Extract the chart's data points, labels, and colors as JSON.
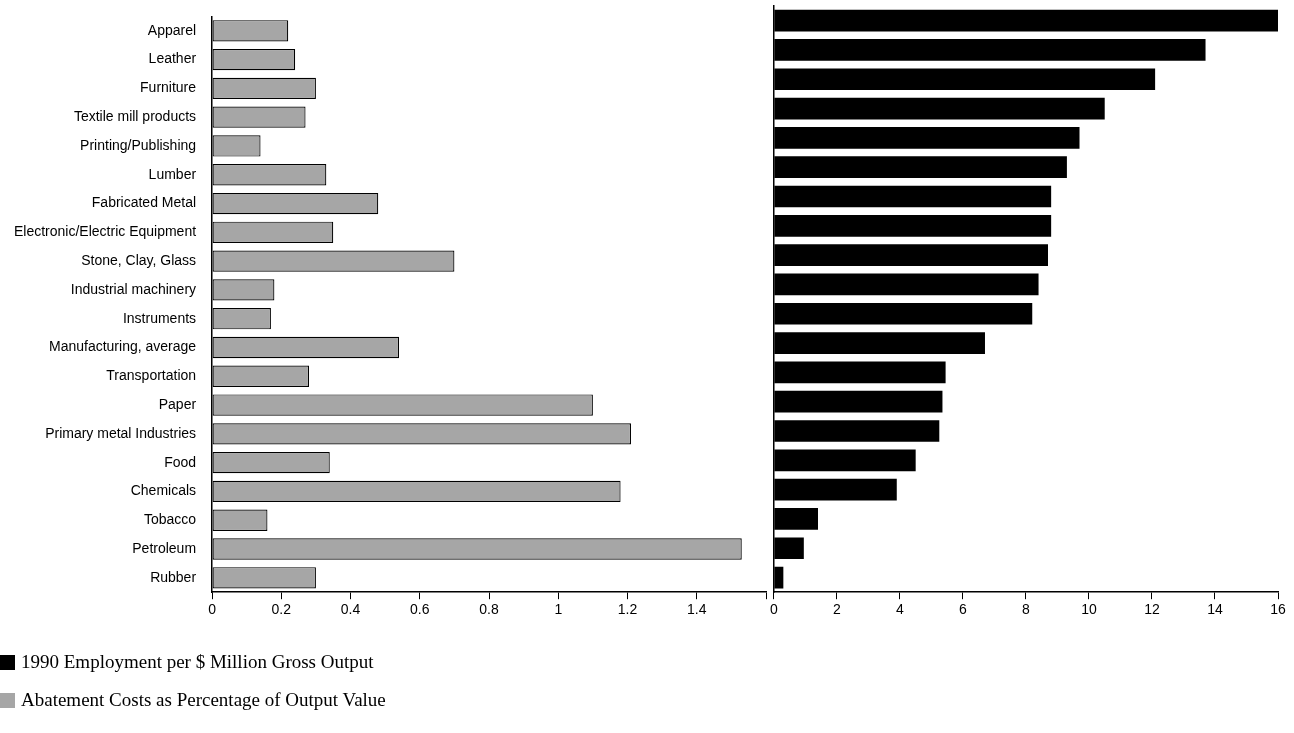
{
  "chart_data": [
    {
      "type": "bar",
      "orientation": "horizontal",
      "categories": [
        "Apparel",
        "Leather",
        "Furniture",
        "Textile mill products",
        "Printing/Publishing",
        "Lumber",
        "Fabricated Metal",
        "Electronic/Electric Equipment",
        "Stone, Clay, Glass",
        "Industrial machinery",
        "Instruments",
        "Manufacturing, average",
        "Transportation",
        "Paper",
        "Primary metal Industries",
        "Food",
        "Chemicals",
        "Tobacco",
        "Petroleum",
        "Rubber"
      ],
      "series": [
        {
          "name": "Abatement Costs as Percentage of Output Value",
          "color": "#a6a6a6",
          "values": [
            0.22,
            0.24,
            0.3,
            0.27,
            0.14,
            0.33,
            0.48,
            0.35,
            0.7,
            0.18,
            0.17,
            0.54,
            0.28,
            1.1,
            1.21,
            0.34,
            1.18,
            0.16,
            1.53,
            0.3
          ]
        }
      ],
      "xlim": [
        0,
        1.6
      ],
      "xticks": [
        0,
        0.2,
        0.4,
        0.6,
        0.8,
        1,
        1.2,
        1.4,
        {
          "value": 1.6,
          "label": null
        }
      ],
      "grid": false,
      "legend": "bottom left"
    },
    {
      "type": "bar",
      "orientation": "horizontal",
      "categories": [
        null,
        null,
        null,
        null,
        null,
        null,
        null,
        null,
        null,
        null,
        null,
        null,
        null,
        null,
        null,
        null,
        null,
        null,
        null,
        null
      ],
      "series": [
        {
          "name": "1990 Employment per $ Million Gross Output",
          "color": "#000000",
          "values": [
            16.0,
            13.7,
            12.1,
            10.5,
            9.7,
            9.3,
            8.8,
            8.8,
            8.7,
            8.4,
            8.2,
            6.7,
            5.45,
            5.35,
            5.25,
            4.5,
            3.9,
            1.4,
            0.95,
            0.3
          ]
        }
      ],
      "xlim": [
        0,
        16
      ],
      "xticks": [
        0,
        2,
        4,
        6,
        8,
        10,
        12,
        14,
        16
      ],
      "grid": false,
      "legend": "bottom left",
      "tick_labels": "x"
    }
  ]
}
